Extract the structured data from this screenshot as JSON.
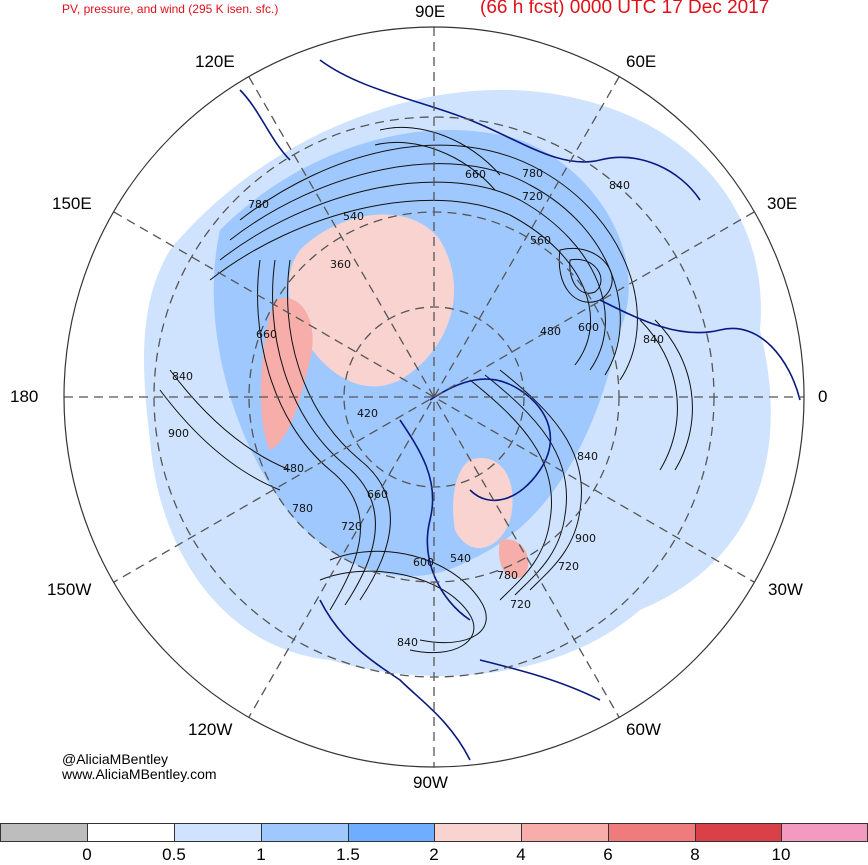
{
  "header": {
    "left_title": "PV, pressure, and wind (295 K isen. sfc.)",
    "right_title": "(66 h fcst) 0000 UTC 17 Dec 2017"
  },
  "longitude_labels": {
    "lon_90e": "90E",
    "lon_60e": "60E",
    "lon_120e": "120E",
    "lon_30e": "30E",
    "lon_150e": "150E",
    "lon_180": "180",
    "lon_0": "0",
    "lon_150w": "150W",
    "lon_30w": "30W",
    "lon_120w": "120W",
    "lon_60w": "60W",
    "lon_90w": "90W"
  },
  "contour_labels": [
    "660",
    "780",
    "720",
    "840",
    "540",
    "560",
    "780",
    "360",
    "660",
    "480",
    "600",
    "840",
    "840",
    "900",
    "420",
    "480",
    "660",
    "780",
    "720",
    "840",
    "900",
    "540",
    "600",
    "780",
    "720",
    "840",
    "720"
  ],
  "credit": {
    "twitter": "@AliciaMBentley",
    "website": "www.AliciaMBentley.com"
  },
  "colorbar": {
    "labels": [
      "0",
      "0.5",
      "1",
      "1.5",
      "2",
      "4",
      "6",
      "8",
      "10"
    ],
    "colors": [
      "#bdbdbd",
      "#ffffff",
      "#cfe3ff",
      "#9fc8ff",
      "#6faeff",
      "#f9d3d0",
      "#f7adaa",
      "#f07b7d",
      "#d94048",
      "#f39ac0"
    ]
  }
}
